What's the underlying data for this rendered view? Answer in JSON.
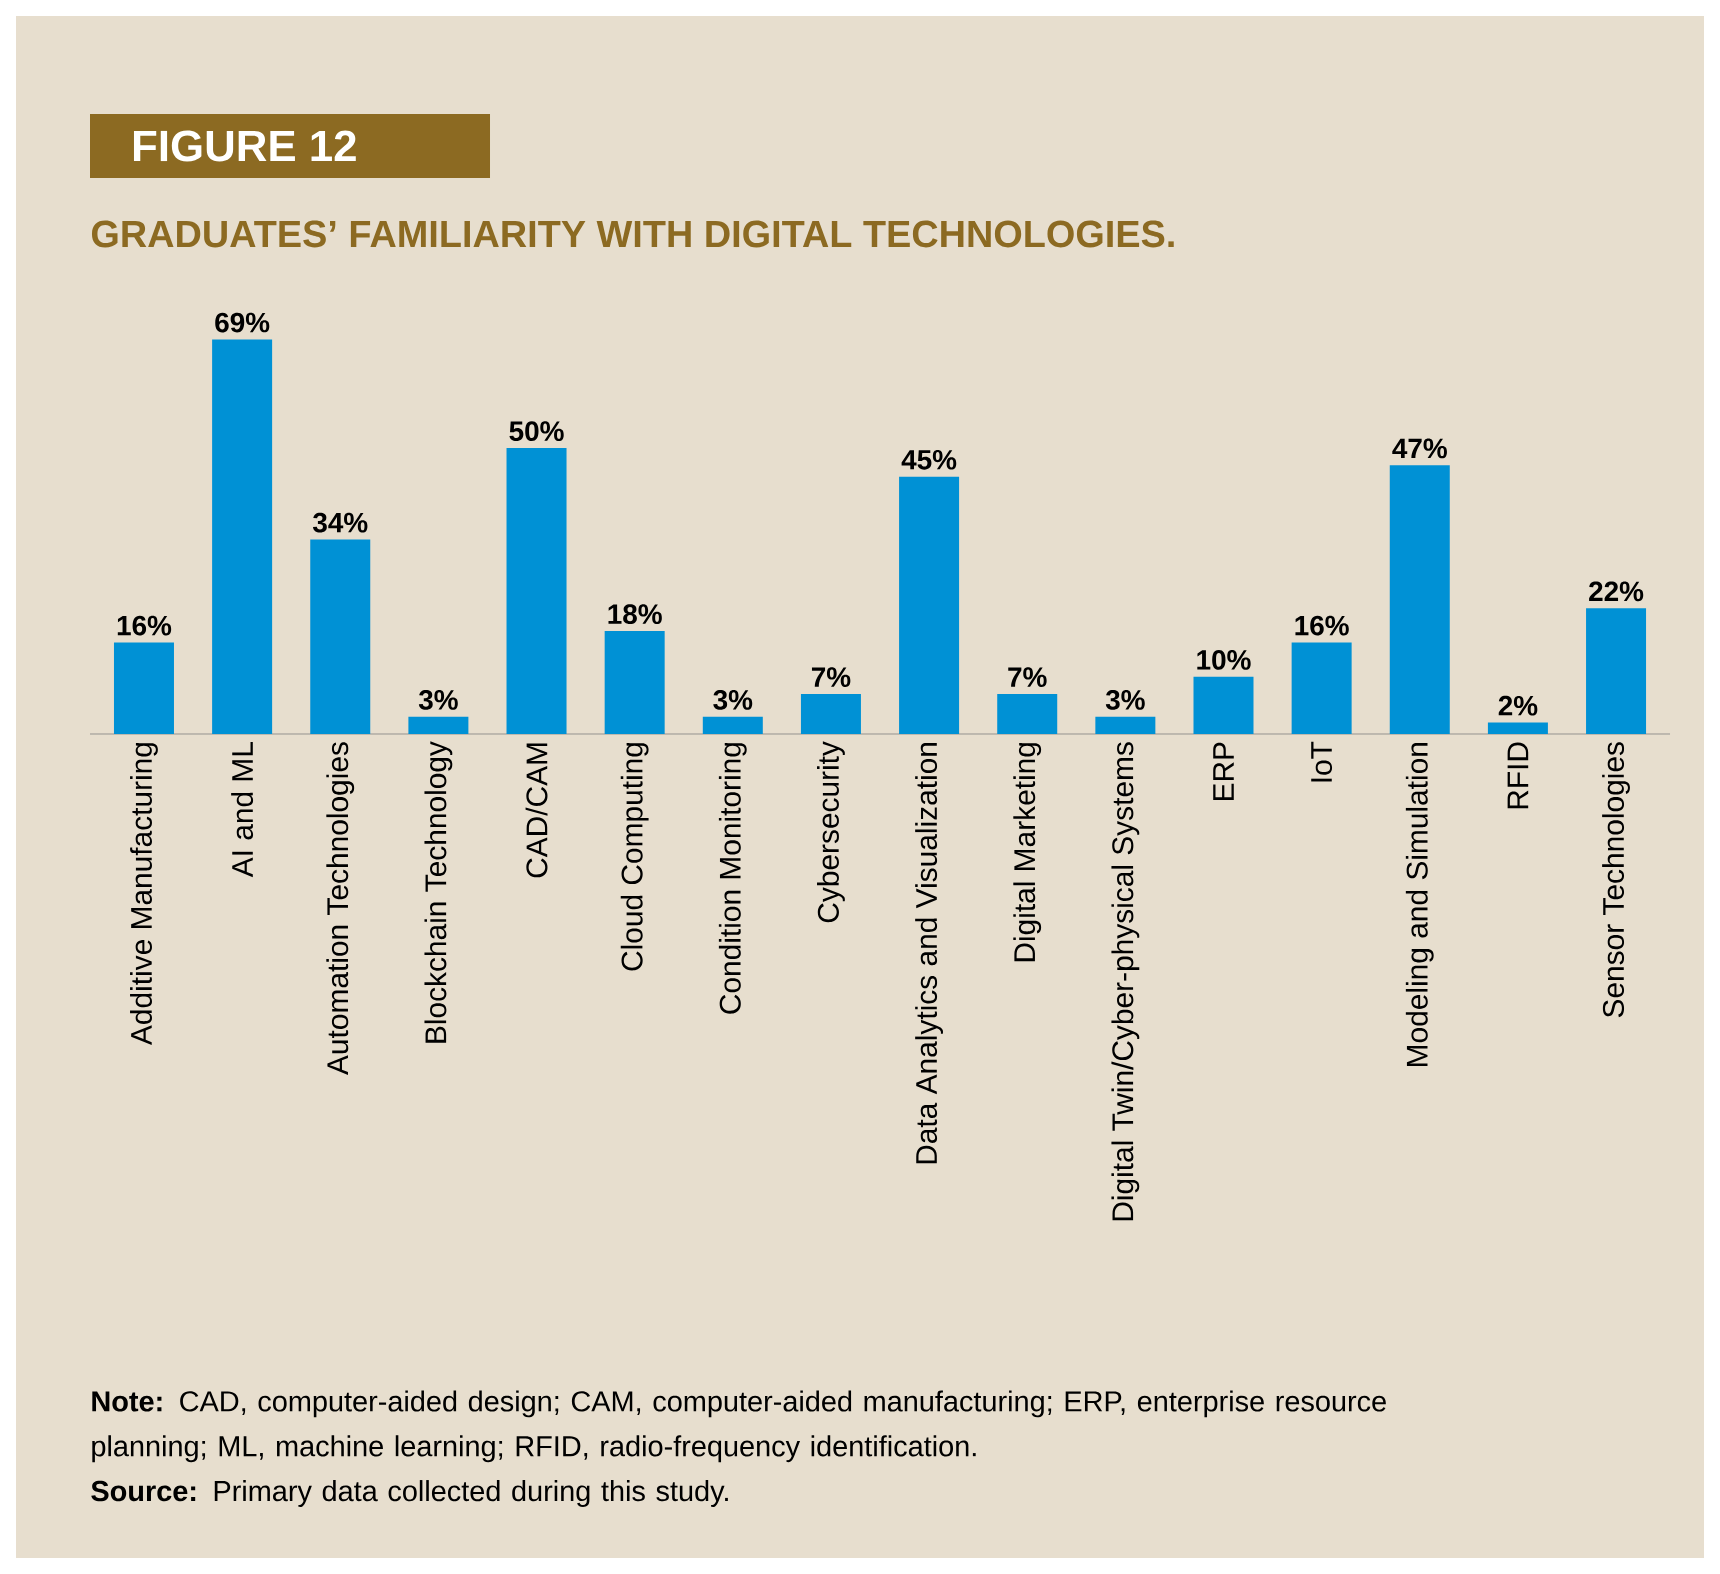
{
  "chart_data": {
    "type": "bar",
    "title": "FIGURE 12",
    "subtitle": "GRADUATES’ FAMILIARITY WITH DIGITAL TECHNOLOGIES.",
    "categories": [
      "Additive Manufacturing",
      "AI and ML",
      "Automation Technologies",
      "Blockchain Technology",
      "CAD/CAM",
      "Cloud Computing",
      "Condition Monitoring",
      "Cybersecurity",
      "Data Analytics and Visualization",
      "Digital Marketing",
      "Digital Twin/Cyber-physical Systems",
      "ERP",
      "IoT",
      "Modeling and Simulation",
      "RFID",
      "Sensor Technologies"
    ],
    "values": [
      16,
      69,
      34,
      3,
      50,
      18,
      3,
      7,
      45,
      7,
      3,
      10,
      16,
      47,
      2,
      22
    ],
    "value_labels": [
      "16%",
      "69%",
      "34%",
      "3%",
      "50%",
      "18%",
      "3%",
      "7%",
      "45%",
      "7%",
      "3%",
      "10%",
      "16%",
      "47%",
      "2%",
      "22%"
    ],
    "color": "#0091d5",
    "annotations": [
      "**Note:** CAD, computer-aided design; CAM, computer-aided manufacturing; ERP, enterprise resource planning; ML, machine learning; RFID, radio-frequency identification.",
      "**Source:** Primary data collected during this study."
    ]
  }
}
